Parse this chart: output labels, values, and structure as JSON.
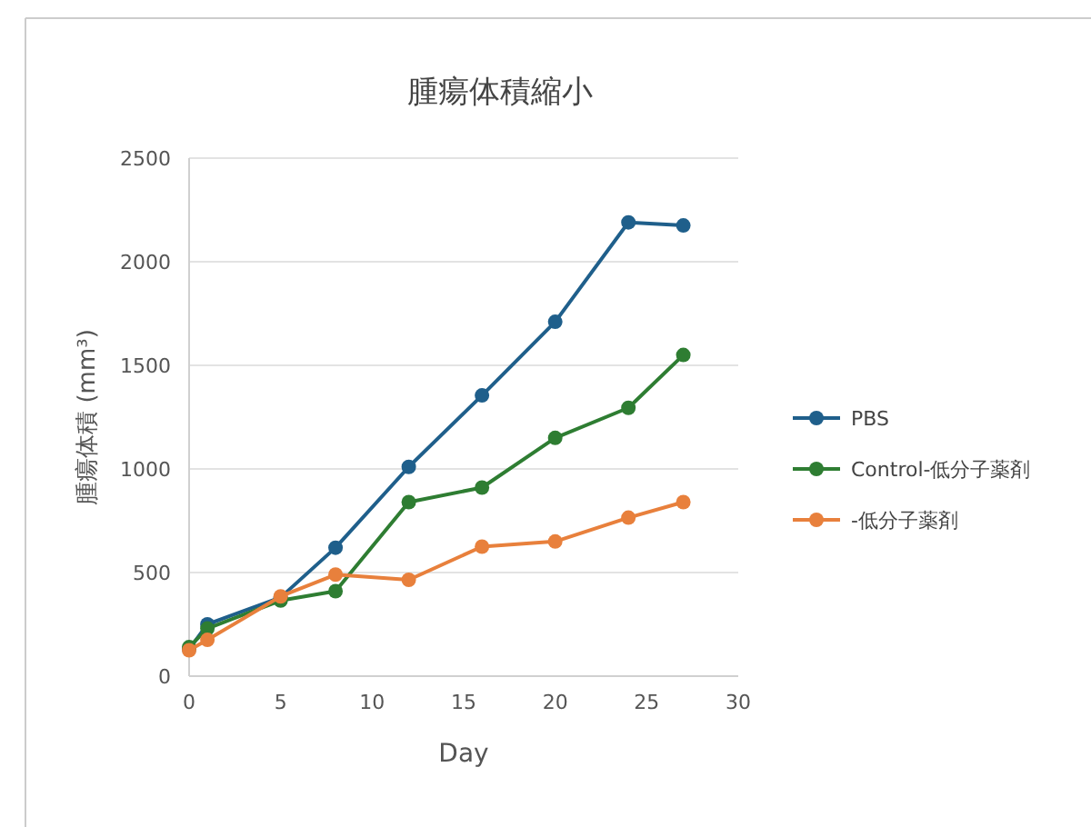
{
  "chart_data": {
    "type": "line",
    "title": "腫瘍体積縮小",
    "xlabel": "Day",
    "ylabel": "腫瘍体積 (mm³)",
    "x": [
      0,
      1,
      5,
      8,
      12,
      16,
      20,
      24,
      27
    ],
    "series": [
      {
        "name": "PBS",
        "color": "#1f5f8b",
        "values": [
          130,
          250,
          380,
          620,
          1010,
          1355,
          1710,
          2190,
          2175
        ]
      },
      {
        "name": "Control-低分子薬剤",
        "color": "#2e7d32",
        "values": [
          140,
          230,
          365,
          410,
          840,
          910,
          1150,
          1295,
          1550
        ]
      },
      {
        "name": "-低分子薬剤",
        "color": "#e8803c",
        "values": [
          125,
          175,
          385,
          490,
          465,
          625,
          650,
          765,
          840
        ]
      }
    ],
    "xlim": [
      0,
      30
    ],
    "xticks": [
      0,
      5,
      10,
      15,
      20,
      25,
      30
    ],
    "ylim": [
      0,
      2500
    ],
    "yticks": [
      0,
      500,
      1000,
      1500,
      2000,
      2500
    ],
    "grid": "y",
    "legend": "right",
    "marker": "circle",
    "line_style": "solid"
  }
}
